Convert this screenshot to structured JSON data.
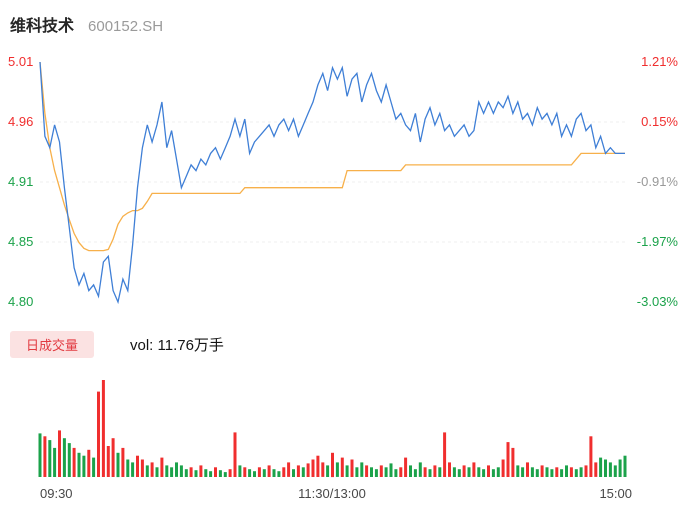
{
  "header": {
    "name": "维科技术",
    "code": "600152.SH"
  },
  "volume_panel": {
    "badge_label": "日成交量",
    "vol_text": "vol: 11.76万手"
  },
  "colors": {
    "up": "#f02e2e",
    "down": "#1ba24a",
    "neutral": "#999999",
    "price_line": "#3f7fd6",
    "avg_line": "#f7b04a",
    "badge_bg": "#fbe2e2",
    "badge_text": "#e23b41",
    "grid": "#efefef"
  },
  "chart_data": {
    "type": "line",
    "title": "维科技术 600152.SH",
    "ylim": [
      4.8,
      5.01
    ],
    "y_axis_left": [
      {
        "label": "5.01",
        "color": "up"
      },
      {
        "label": "4.96",
        "color": "up"
      },
      {
        "label": "4.91",
        "color": "down"
      },
      {
        "label": "4.85",
        "color": "down"
      },
      {
        "label": "4.80",
        "color": "down"
      }
    ],
    "y_axis_right": [
      {
        "label": "1.21%",
        "color": "up"
      },
      {
        "label": "0.15%",
        "color": "up"
      },
      {
        "label": "-0.91%",
        "color": "neutral"
      },
      {
        "label": "-1.97%",
        "color": "down"
      },
      {
        "label": "-3.03%",
        "color": "down"
      }
    ],
    "x_axis": [
      "09:30",
      "11:30/13:00",
      "15:00"
    ],
    "series": [
      {
        "name": "price",
        "values": [
          5.01,
          4.945,
          4.935,
          4.955,
          4.94,
          4.9,
          4.865,
          4.83,
          4.815,
          4.825,
          4.81,
          4.815,
          4.805,
          4.835,
          4.84,
          4.81,
          4.8,
          4.82,
          4.81,
          4.85,
          4.9,
          4.935,
          4.955,
          4.94,
          4.955,
          4.975,
          4.935,
          4.95,
          4.925,
          4.9,
          4.91,
          4.92,
          4.915,
          4.925,
          4.92,
          4.93,
          4.935,
          4.925,
          4.935,
          4.945,
          4.96,
          4.945,
          4.96,
          4.93,
          4.94,
          4.945,
          4.95,
          4.955,
          4.945,
          4.955,
          4.96,
          4.95,
          4.96,
          4.945,
          4.955,
          4.965,
          4.975,
          4.99,
          5.0,
          4.985,
          5.005,
          4.995,
          5.005,
          4.98,
          4.995,
          5.0,
          4.975,
          4.99,
          5.0,
          4.985,
          4.975,
          4.99,
          4.975,
          4.96,
          4.965,
          4.955,
          4.95,
          4.965,
          4.94,
          4.96,
          4.97,
          4.955,
          4.965,
          4.95,
          4.955,
          4.945,
          4.95,
          4.955,
          4.945,
          4.95,
          4.975,
          4.965,
          4.975,
          4.965,
          4.975,
          4.97,
          4.98,
          4.965,
          4.975,
          4.96,
          4.965,
          4.955,
          4.97,
          4.96,
          4.965,
          4.955,
          4.965,
          4.945,
          4.955,
          4.945,
          4.96,
          4.965,
          4.95,
          4.955,
          4.935,
          4.945,
          4.93,
          4.935,
          4.93,
          4.93,
          4.93
        ]
      },
      {
        "name": "avg",
        "values": [
          5.01,
          4.965,
          4.935,
          4.915,
          4.9,
          4.885,
          4.872,
          4.86,
          4.852,
          4.847,
          4.845,
          4.845,
          4.845,
          4.845,
          4.846,
          4.855,
          4.868,
          4.875,
          4.878,
          4.88,
          4.88,
          4.882,
          4.888,
          4.895,
          4.895,
          4.895,
          4.895,
          4.895,
          4.895,
          4.895,
          4.895,
          4.895,
          4.895,
          4.895,
          4.895,
          4.895,
          4.895,
          4.895,
          4.895,
          4.895,
          4.895,
          4.895,
          4.9,
          4.9,
          4.9,
          4.9,
          4.9,
          4.9,
          4.9,
          4.9,
          4.9,
          4.9,
          4.9,
          4.9,
          4.9,
          4.9,
          4.9,
          4.9,
          4.9,
          4.9,
          4.9,
          4.9,
          4.9,
          4.915,
          4.915,
          4.915,
          4.915,
          4.915,
          4.915,
          4.915,
          4.915,
          4.915,
          4.915,
          4.915,
          4.915,
          4.92,
          4.92,
          4.92,
          4.92,
          4.92,
          4.92,
          4.92,
          4.92,
          4.92,
          4.92,
          4.92,
          4.92,
          4.92,
          4.92,
          4.92,
          4.92,
          4.92,
          4.92,
          4.92,
          4.92,
          4.92,
          4.92,
          4.92,
          4.92,
          4.92,
          4.92,
          4.92,
          4.92,
          4.92,
          4.92,
          4.92,
          4.92,
          4.92,
          4.92,
          4.92,
          4.925,
          4.93,
          4.93,
          4.93,
          4.93,
          4.93,
          4.93,
          4.93,
          4.93,
          4.93,
          4.93
        ]
      }
    ],
    "volume": {
      "bars": [
        [
          0.45,
          "g"
        ],
        [
          0.42,
          "r"
        ],
        [
          0.38,
          "g"
        ],
        [
          0.3,
          "g"
        ],
        [
          0.48,
          "r"
        ],
        [
          0.4,
          "g"
        ],
        [
          0.35,
          "g"
        ],
        [
          0.3,
          "r"
        ],
        [
          0.25,
          "g"
        ],
        [
          0.22,
          "g"
        ],
        [
          0.28,
          "r"
        ],
        [
          0.2,
          "g"
        ],
        [
          0.88,
          "r"
        ],
        [
          1.0,
          "r"
        ],
        [
          0.32,
          "r"
        ],
        [
          0.4,
          "r"
        ],
        [
          0.25,
          "g"
        ],
        [
          0.3,
          "r"
        ],
        [
          0.18,
          "g"
        ],
        [
          0.15,
          "g"
        ],
        [
          0.22,
          "r"
        ],
        [
          0.18,
          "r"
        ],
        [
          0.12,
          "g"
        ],
        [
          0.15,
          "r"
        ],
        [
          0.1,
          "g"
        ],
        [
          0.2,
          "r"
        ],
        [
          0.12,
          "g"
        ],
        [
          0.1,
          "g"
        ],
        [
          0.15,
          "g"
        ],
        [
          0.12,
          "g"
        ],
        [
          0.08,
          "g"
        ],
        [
          0.1,
          "r"
        ],
        [
          0.07,
          "g"
        ],
        [
          0.12,
          "r"
        ],
        [
          0.08,
          "g"
        ],
        [
          0.06,
          "g"
        ],
        [
          0.1,
          "r"
        ],
        [
          0.07,
          "g"
        ],
        [
          0.05,
          "g"
        ],
        [
          0.08,
          "r"
        ],
        [
          0.46,
          "r"
        ],
        [
          0.12,
          "g"
        ],
        [
          0.1,
          "r"
        ],
        [
          0.08,
          "g"
        ],
        [
          0.06,
          "g"
        ],
        [
          0.1,
          "r"
        ],
        [
          0.08,
          "g"
        ],
        [
          0.12,
          "r"
        ],
        [
          0.08,
          "g"
        ],
        [
          0.06,
          "g"
        ],
        [
          0.1,
          "r"
        ],
        [
          0.15,
          "r"
        ],
        [
          0.08,
          "g"
        ],
        [
          0.12,
          "r"
        ],
        [
          0.1,
          "g"
        ],
        [
          0.14,
          "r"
        ],
        [
          0.18,
          "r"
        ],
        [
          0.22,
          "r"
        ],
        [
          0.15,
          "r"
        ],
        [
          0.12,
          "g"
        ],
        [
          0.25,
          "r"
        ],
        [
          0.15,
          "g"
        ],
        [
          0.2,
          "r"
        ],
        [
          0.12,
          "g"
        ],
        [
          0.18,
          "r"
        ],
        [
          0.1,
          "g"
        ],
        [
          0.15,
          "g"
        ],
        [
          0.12,
          "r"
        ],
        [
          0.1,
          "g"
        ],
        [
          0.08,
          "g"
        ],
        [
          0.12,
          "r"
        ],
        [
          0.1,
          "g"
        ],
        [
          0.14,
          "g"
        ],
        [
          0.08,
          "g"
        ],
        [
          0.1,
          "r"
        ],
        [
          0.2,
          "r"
        ],
        [
          0.12,
          "g"
        ],
        [
          0.08,
          "g"
        ],
        [
          0.15,
          "g"
        ],
        [
          0.1,
          "r"
        ],
        [
          0.08,
          "g"
        ],
        [
          0.12,
          "r"
        ],
        [
          0.1,
          "g"
        ],
        [
          0.46,
          "r"
        ],
        [
          0.15,
          "r"
        ],
        [
          0.1,
          "g"
        ],
        [
          0.08,
          "g"
        ],
        [
          0.12,
          "r"
        ],
        [
          0.1,
          "g"
        ],
        [
          0.15,
          "r"
        ],
        [
          0.1,
          "g"
        ],
        [
          0.08,
          "g"
        ],
        [
          0.12,
          "r"
        ],
        [
          0.08,
          "g"
        ],
        [
          0.1,
          "g"
        ],
        [
          0.18,
          "r"
        ],
        [
          0.36,
          "r"
        ],
        [
          0.3,
          "r"
        ],
        [
          0.12,
          "g"
        ],
        [
          0.1,
          "g"
        ],
        [
          0.15,
          "r"
        ],
        [
          0.1,
          "g"
        ],
        [
          0.08,
          "g"
        ],
        [
          0.12,
          "r"
        ],
        [
          0.1,
          "g"
        ],
        [
          0.08,
          "g"
        ],
        [
          0.1,
          "r"
        ],
        [
          0.08,
          "g"
        ],
        [
          0.12,
          "g"
        ],
        [
          0.1,
          "r"
        ],
        [
          0.08,
          "g"
        ],
        [
          0.1,
          "g"
        ],
        [
          0.12,
          "r"
        ],
        [
          0.42,
          "r"
        ],
        [
          0.15,
          "r"
        ],
        [
          0.2,
          "g"
        ],
        [
          0.18,
          "g"
        ],
        [
          0.15,
          "g"
        ],
        [
          0.12,
          "g"
        ],
        [
          0.18,
          "g"
        ],
        [
          0.22,
          "g"
        ]
      ]
    }
  }
}
